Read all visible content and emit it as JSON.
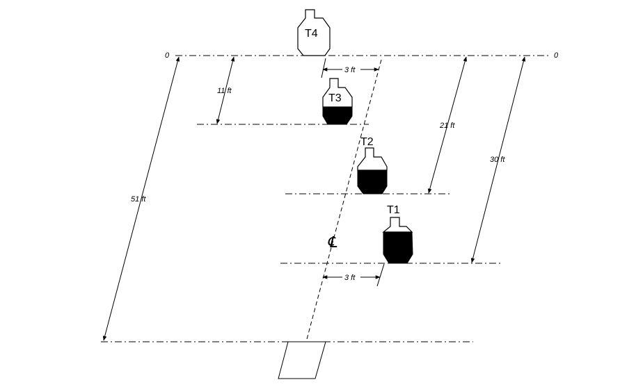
{
  "diagram": {
    "zero_left": "0",
    "zero_right": "0",
    "targets": {
      "t1": "T1",
      "t2": "T2",
      "t3": "T3",
      "t4": "T4"
    },
    "dimensions": {
      "t3_distance": "11 ft",
      "t2_distance": "21 ft",
      "t1_distance": "30 ft",
      "total_distance": "51 ft",
      "top_offset": "3 ft",
      "bottom_offset": "3 ft"
    },
    "centerline_symbol": "℄"
  }
}
